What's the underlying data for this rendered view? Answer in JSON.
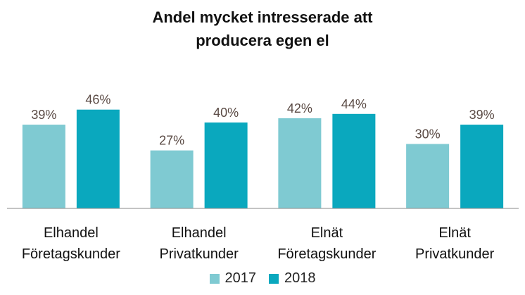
{
  "chart_data": {
    "type": "bar",
    "title_lines": [
      "Andel mycket intresserade att",
      "producera egen el"
    ],
    "categories": [
      [
        "Elhandel",
        "Företagskunder"
      ],
      [
        "Elhandel",
        "Privatkunder"
      ],
      [
        "Elnät",
        "Företagskunder"
      ],
      [
        "Elnät",
        "Privatkunder"
      ]
    ],
    "series": [
      {
        "name": "2017",
        "color": "#7FCAD2",
        "values": [
          39,
          27,
          42,
          30
        ],
        "labels": [
          "39%",
          "27%",
          "42%",
          "30%"
        ]
      },
      {
        "name": "2018",
        "color": "#0AA8BE",
        "values": [
          46,
          40,
          44,
          39
        ],
        "labels": [
          "46%",
          "40%",
          "44%",
          "39%"
        ]
      }
    ],
    "ylim": [
      0,
      100
    ],
    "legend_position": "bottom",
    "grid": false
  }
}
